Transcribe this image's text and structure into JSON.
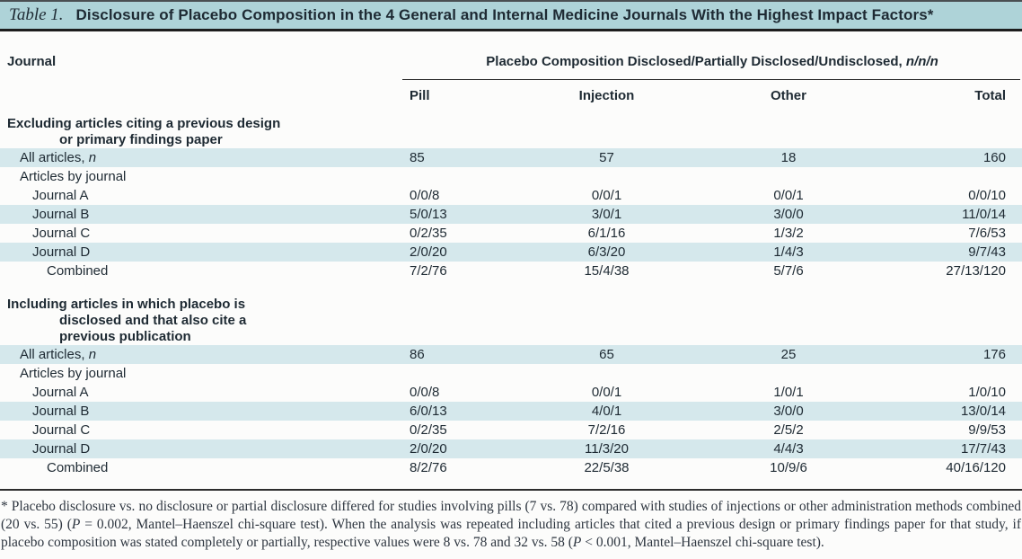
{
  "title": {
    "label": "Table 1.",
    "text": "Disclosure of Placebo Composition in the 4 General and Internal Medicine Journals With the Highest Impact Factors*"
  },
  "header": {
    "row_label": "Journal",
    "span_header_parts": [
      {
        "t": "Placebo Composition Disclosed/Partially Disclosed/Undisclosed, "
      },
      {
        "t": "n/n/n",
        "i": true
      }
    ],
    "columns": [
      "Pill",
      "Injection",
      "Other",
      "Total"
    ]
  },
  "sections": [
    {
      "header_lines": [
        "Excluding articles citing a previous design",
        "or primary findings paper"
      ],
      "rows": [
        {
          "label_parts": [
            {
              "t": "All articles, "
            },
            {
              "t": "n",
              "i": true
            }
          ],
          "level": 1,
          "shaded": true,
          "values": [
            "85",
            "57",
            "18",
            "160"
          ]
        },
        {
          "label_parts": [
            {
              "t": "Articles by journal"
            }
          ],
          "level": 1,
          "shaded": false,
          "values": [
            "",
            "",
            "",
            ""
          ]
        },
        {
          "label_parts": [
            {
              "t": "Journal A"
            }
          ],
          "level": 2,
          "shaded": false,
          "values": [
            "0/0/8",
            "0/0/1",
            "0/0/1",
            "0/0/10"
          ]
        },
        {
          "label_parts": [
            {
              "t": "Journal B"
            }
          ],
          "level": 2,
          "shaded": true,
          "values": [
            "5/0/13",
            "3/0/1",
            "3/0/0",
            "11/0/14"
          ]
        },
        {
          "label_parts": [
            {
              "t": "Journal C"
            }
          ],
          "level": 2,
          "shaded": false,
          "values": [
            "0/2/35",
            "6/1/16",
            "1/3/2",
            "7/6/53"
          ]
        },
        {
          "label_parts": [
            {
              "t": "Journal D"
            }
          ],
          "level": 2,
          "shaded": true,
          "values": [
            "2/0/20",
            "6/3/20",
            "1/4/3",
            "9/7/43"
          ]
        },
        {
          "label_parts": [
            {
              "t": "Combined"
            }
          ],
          "level": 3,
          "shaded": false,
          "values": [
            "7/2/76",
            "15/4/38",
            "5/7/6",
            "27/13/120"
          ]
        }
      ]
    },
    {
      "header_lines": [
        "Including articles in which placebo is",
        "disclosed and that also cite a",
        "previous publication"
      ],
      "rows": [
        {
          "label_parts": [
            {
              "t": "All articles, "
            },
            {
              "t": "n",
              "i": true
            }
          ],
          "level": 1,
          "shaded": true,
          "values": [
            "86",
            "65",
            "25",
            "176"
          ]
        },
        {
          "label_parts": [
            {
              "t": "Articles by journal"
            }
          ],
          "level": 1,
          "shaded": false,
          "values": [
            "",
            "",
            "",
            ""
          ]
        },
        {
          "label_parts": [
            {
              "t": "Journal A"
            }
          ],
          "level": 2,
          "shaded": false,
          "values": [
            "0/0/8",
            "0/0/1",
            "1/0/1",
            "1/0/10"
          ]
        },
        {
          "label_parts": [
            {
              "t": "Journal B"
            }
          ],
          "level": 2,
          "shaded": true,
          "values": [
            "6/0/13",
            "4/0/1",
            "3/0/0",
            "13/0/14"
          ]
        },
        {
          "label_parts": [
            {
              "t": "Journal C"
            }
          ],
          "level": 2,
          "shaded": false,
          "values": [
            "0/2/35",
            "7/2/16",
            "2/5/2",
            "9/9/53"
          ]
        },
        {
          "label_parts": [
            {
              "t": "Journal D"
            }
          ],
          "level": 2,
          "shaded": true,
          "values": [
            "2/0/20",
            "11/3/20",
            "4/4/3",
            "17/7/43"
          ]
        },
        {
          "label_parts": [
            {
              "t": "Combined"
            }
          ],
          "level": 3,
          "shaded": false,
          "values": [
            "8/2/76",
            "22/5/38",
            "10/9/6",
            "40/16/120"
          ]
        }
      ]
    }
  ],
  "footnote_parts": [
    {
      "t": "* Placebo disclosure vs. no disclosure or partial disclosure differed for studies involving pills (7 vs. 78) compared with studies of injections or other administration methods combined (20 vs. 55) ("
    },
    {
      "t": "P",
      "i": true
    },
    {
      "t": " = 0.002, Mantel–Haenszel chi-square test). When the analysis was repeated including articles that cited a previous design or primary findings paper for that study, if placebo composition was stated completely or partially, respective values were 8 vs. 78 and 32 vs. 58 ("
    },
    {
      "t": "P",
      "i": true
    },
    {
      "t": " < 0.001, Mantel–Haenszel chi-square test)."
    }
  ],
  "colors": {
    "title_bg": "#aed3d8",
    "row_shade": "#d5e8ec",
    "text": "#1e2a33",
    "rule": "#2d2d2d"
  }
}
